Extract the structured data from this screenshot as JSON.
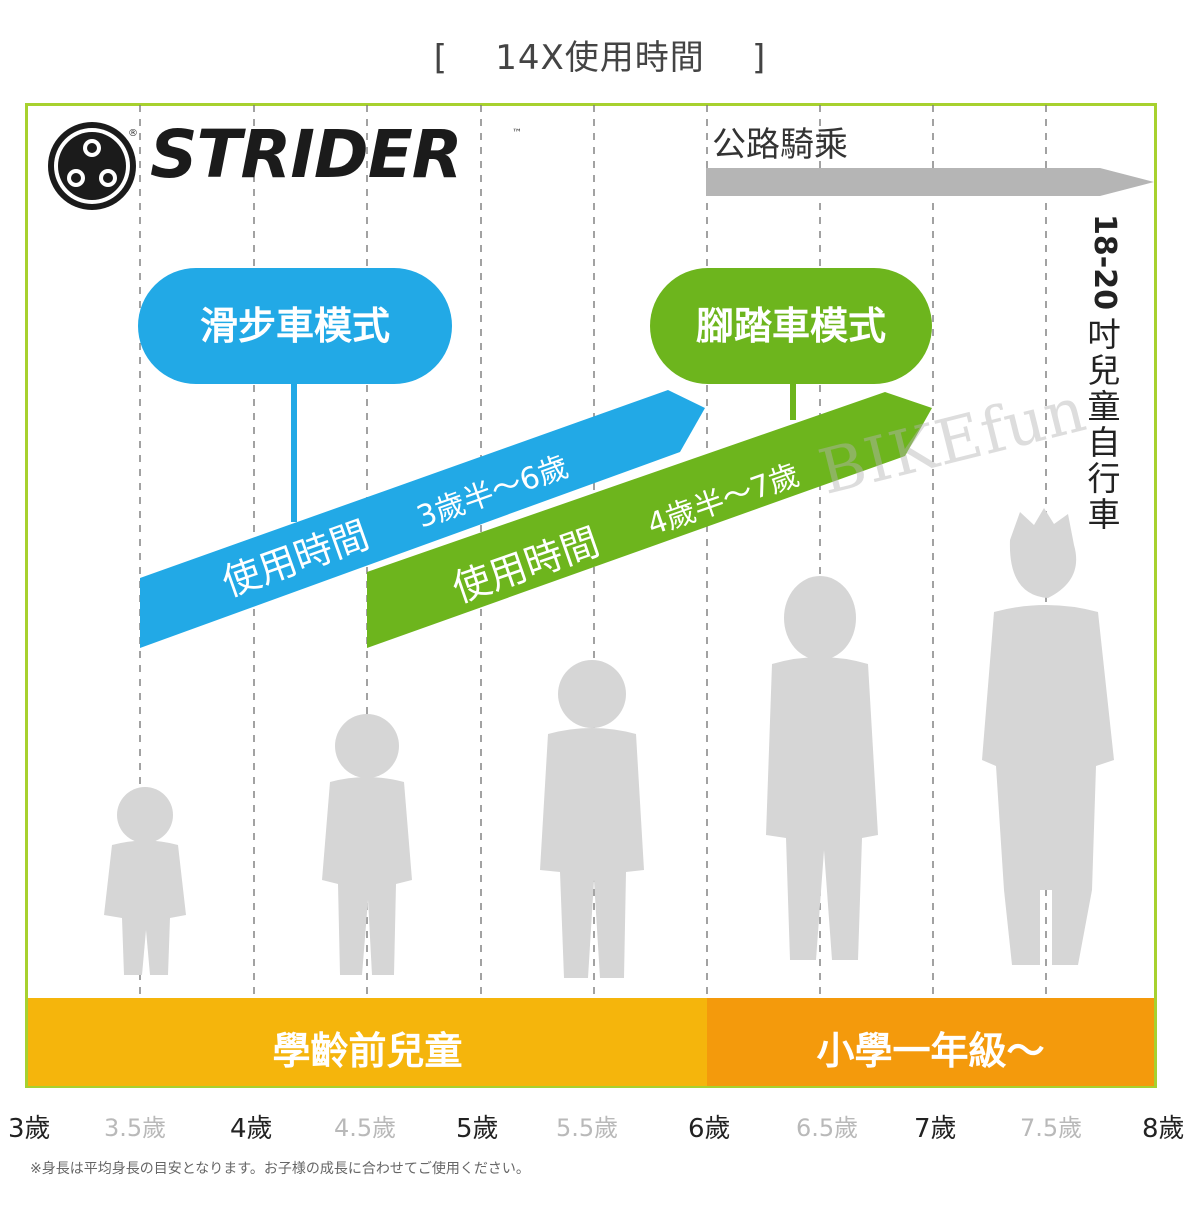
{
  "title": "[    14X使用時間    ]",
  "logo": {
    "text": "STRIDER",
    "tm": "™",
    "reg": "®"
  },
  "road_riding": {
    "label": "公路騎乘",
    "target": [
      "18-20",
      "吋",
      "兒",
      "童",
      "自",
      "行",
      "車"
    ]
  },
  "modes": [
    {
      "label": "滑步車模式",
      "usage": "使用時間",
      "range": "3歲半～6歲",
      "color": "#22a9e6"
    },
    {
      "label": "腳踏車模式",
      "usage": "使用時間",
      "range": "4歲半～7歲",
      "color": "#6db51d"
    }
  ],
  "bands": [
    {
      "label": "學齡前兒童",
      "color": "#f5b50c"
    },
    {
      "label": "小學一年級～",
      "color": "#f49a0c"
    }
  ],
  "ages": {
    "full": [
      "3歲",
      "4歲",
      "5歲",
      "6歲",
      "7歲",
      "8歲"
    ],
    "half": [
      "3.5歲",
      "4.5歲",
      "5.5歲",
      "6.5歲",
      "7.5歲"
    ]
  },
  "watermark": "BIKEfun",
  "note": "※身長は平均身長の目安となります。お子様の成長に合わせてご使用ください。",
  "colors": {
    "frame": "#a7d12f",
    "grey_arrow": "#b5b5b5",
    "silhouette": "#d6d6d6"
  }
}
